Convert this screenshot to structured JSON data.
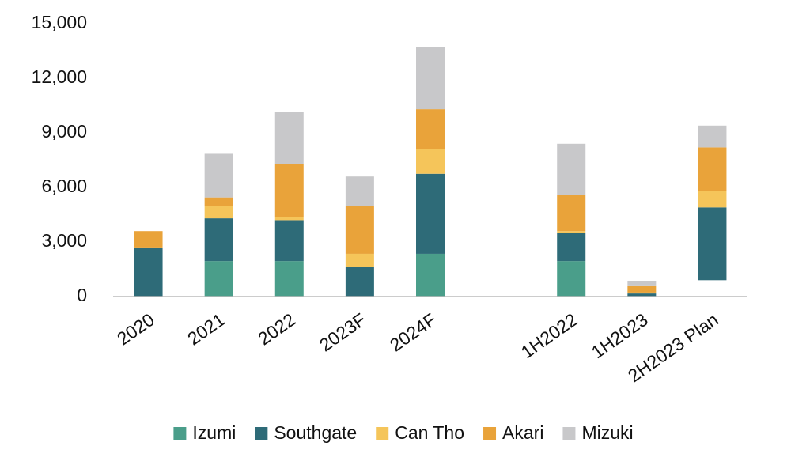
{
  "chart_data": {
    "type": "stacked_bar",
    "categories": [
      "2020",
      "2021",
      "2022",
      "2023F",
      "2024F",
      null,
      "1H2022",
      "1H2023",
      "2H2023 Plan"
    ],
    "series": [
      {
        "name": null,
        "color": null,
        "values": [
          null,
          null,
          null,
          null,
          null,
          null,
          null,
          null,
          900
        ]
      },
      {
        "name": "Izumi",
        "color": "#4a9e8a",
        "values": [
          0,
          1950,
          1950,
          0,
          2350,
          null,
          1950,
          0,
          0
        ]
      },
      {
        "name": "Southgate",
        "color": "#2e6b78",
        "values": [
          2700,
          2350,
          2250,
          1650,
          4400,
          null,
          1530,
          170,
          4000
        ]
      },
      {
        "name": "Can Tho",
        "color": "#f5c55a",
        "values": [
          0,
          700,
          150,
          700,
          1350,
          null,
          120,
          50,
          900
        ]
      },
      {
        "name": "Akari",
        "color": "#e9a33a",
        "values": [
          900,
          450,
          2950,
          2650,
          2200,
          null,
          2000,
          350,
          2400
        ]
      },
      {
        "name": "Mizuki",
        "color": "#c8c8ca",
        "values": [
          0,
          2400,
          2850,
          1600,
          3400,
          null,
          2800,
          300,
          1200
        ]
      }
    ],
    "ylim": [
      0,
      15000
    ],
    "yticks": [
      0,
      {
        "value": 3000,
        "label": "3,000"
      },
      {
        "value": 6000,
        "label": "6,000"
      },
      {
        "value": 9000,
        "label": "9,000"
      },
      {
        "value": 12000,
        "label": "12,000"
      },
      {
        "value": 15000,
        "label": "15,000"
      }
    ],
    "legend": "bottom"
  }
}
